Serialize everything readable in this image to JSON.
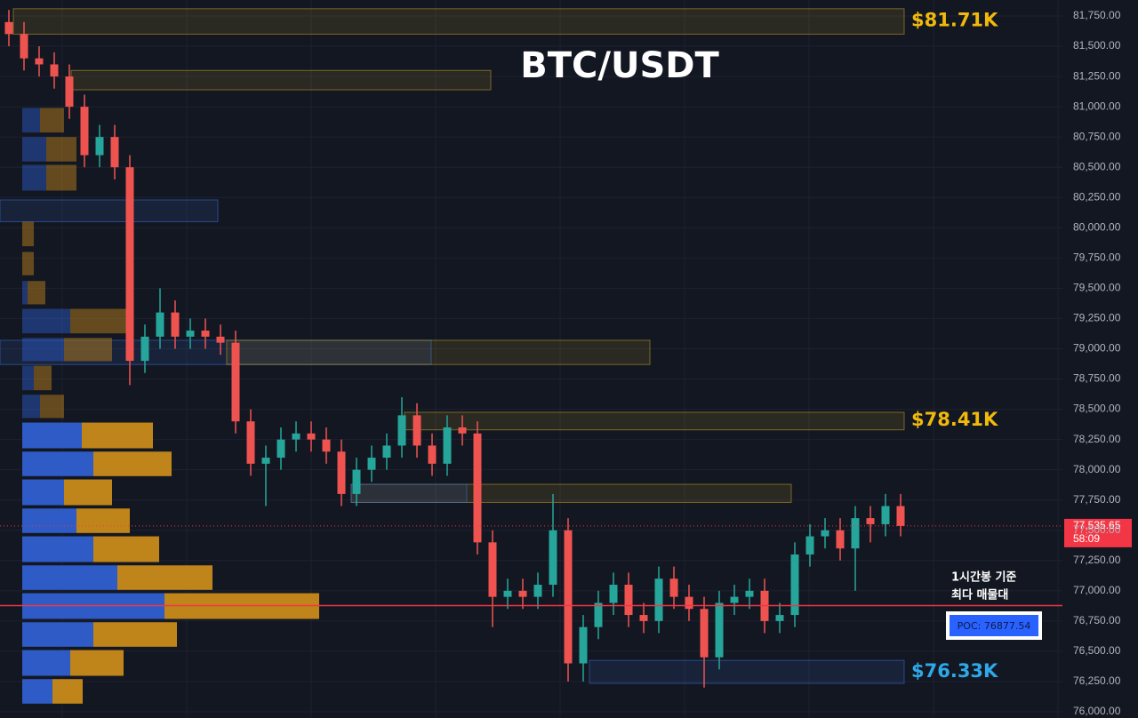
{
  "chart_data": {
    "type": "candlestick",
    "title": "BTC/USDT",
    "up_color": "#26a69a",
    "down_color": "#ef5350",
    "ylim": [
      76000,
      81750
    ],
    "grid": true,
    "yticks": [
      {
        "value": 76000,
        "label": "76,000.00"
      },
      {
        "value": 76250,
        "label": "76,250.00"
      },
      {
        "value": 76500,
        "label": "76,500.00"
      },
      {
        "value": 76750,
        "label": "76,750.00"
      },
      {
        "value": 77000,
        "label": "77,000.00"
      },
      {
        "value": 77250,
        "label": "77,250.00"
      },
      {
        "value": 77500,
        "label": "77,500.00"
      },
      {
        "value": 77750,
        "label": "77,750.00"
      },
      {
        "value": 78000,
        "label": "78,000.00"
      },
      {
        "value": 78250,
        "label": "78,250.00"
      },
      {
        "value": 78500,
        "label": "78,500.00"
      },
      {
        "value": 78750,
        "label": "78,750.00"
      },
      {
        "value": 79000,
        "label": "79,000.00"
      },
      {
        "value": 79250,
        "label": "79,250.00"
      },
      {
        "value": 79500,
        "label": "79,500.00"
      },
      {
        "value": 79750,
        "label": "79,750.00"
      },
      {
        "value": 80000,
        "label": "80,000.00"
      },
      {
        "value": 80250,
        "label": "80,250.00"
      },
      {
        "value": 80500,
        "label": "80,500.00"
      },
      {
        "value": 80750,
        "label": "80,750.00"
      },
      {
        "value": 81000,
        "label": "81,000.00"
      },
      {
        "value": 81250,
        "label": "81,250.00"
      },
      {
        "value": 81500,
        "label": "81,500.00"
      },
      {
        "value": 81750,
        "label": "81,750.00"
      }
    ],
    "open": [
      81700,
      81600,
      81400,
      81350,
      81250,
      81000,
      80600,
      80750,
      80500,
      78900,
      79100,
      79300,
      79100,
      79150,
      79100,
      79050,
      78400,
      78050,
      78100,
      78250,
      78300,
      78250,
      78150,
      77800,
      78000,
      78100,
      78200,
      78450,
      78200,
      78050,
      78350,
      78300,
      77400,
      76950,
      77000,
      76950,
      77050,
      77500,
      76400,
      76700,
      76900,
      77050,
      76800,
      76750,
      77100,
      76950,
      76850,
      76450,
      76900,
      76950,
      77000,
      76750,
      76800,
      77300,
      77450,
      77500,
      77350,
      77600,
      77550,
      77700
    ],
    "high": [
      81800,
      81700,
      81500,
      81450,
      81350,
      81100,
      80850,
      80850,
      80600,
      79200,
      79500,
      79400,
      79250,
      79250,
      79200,
      79150,
      78500,
      78200,
      78350,
      78400,
      78400,
      78350,
      78250,
      78100,
      78200,
      78300,
      78600,
      78550,
      78300,
      78450,
      78450,
      78400,
      77500,
      77100,
      77100,
      77150,
      77800,
      77600,
      76800,
      77000,
      77150,
      77150,
      76900,
      77200,
      77200,
      77050,
      76950,
      77000,
      77050,
      77100,
      77100,
      76900,
      77400,
      77550,
      77600,
      77600,
      77700,
      77700,
      77800,
      77800
    ],
    "low": [
      81500,
      81300,
      81250,
      81150,
      80900,
      80500,
      80500,
      80400,
      78700,
      78800,
      79000,
      79000,
      79000,
      79000,
      78950,
      78300,
      77950,
      77700,
      78000,
      78150,
      78150,
      78050,
      77700,
      77700,
      77900,
      78000,
      78100,
      78100,
      77950,
      77950,
      78200,
      77300,
      76700,
      76850,
      76850,
      76850,
      76950,
      76250,
      76250,
      76600,
      76800,
      76700,
      76650,
      76650,
      76850,
      76750,
      76200,
      76350,
      76800,
      76850,
      76650,
      76650,
      76700,
      77200,
      77350,
      77250,
      77000,
      77400,
      77450,
      77450
    ],
    "close": [
      81600,
      81400,
      81350,
      81250,
      81000,
      80600,
      80750,
      80500,
      78900,
      79100,
      79300,
      79100,
      79150,
      79100,
      79050,
      78400,
      78050,
      78100,
      78250,
      78300,
      78250,
      78150,
      77800,
      78000,
      78100,
      78200,
      78450,
      78200,
      78050,
      78350,
      78300,
      77400,
      76950,
      77000,
      76950,
      77050,
      77500,
      76400,
      76700,
      76900,
      77050,
      76800,
      76750,
      77100,
      76950,
      76850,
      76450,
      76900,
      76950,
      77000,
      76750,
      76800,
      77300,
      77450,
      77500,
      77350,
      77600,
      77550,
      77700,
      77535.65
    ],
    "zones": [
      {
        "low": 81600,
        "high": 81810,
        "color": "#c9a227"
      },
      {
        "low": 81140,
        "high": 81300,
        "color": "#c9a227"
      },
      {
        "low": 80050,
        "high": 80230,
        "color": "#3a6fd8"
      },
      {
        "low": 78870,
        "high": 79070,
        "color": "#3a6fd8"
      },
      {
        "low": 78870,
        "high": 79070,
        "color": "#c9a227"
      },
      {
        "low": 78330,
        "high": 78475,
        "color": "#c9a227"
      },
      {
        "low": 77730,
        "high": 77880,
        "color": "#c9a227"
      },
      {
        "low": 77730,
        "high": 77880,
        "color": "#3a6fd8"
      },
      {
        "low": 76235,
        "high": 76425,
        "color": "#3a6fd8"
      }
    ],
    "levels": [
      {
        "value": 81710,
        "label": "$81.71K",
        "color": "#f0b90b"
      },
      {
        "value": 78410,
        "label": "$78.41K",
        "color": "#f0b90b"
      },
      {
        "value": 76330,
        "label": "$76.33K",
        "color": "#2ea8e8"
      }
    ],
    "volume_profile": {
      "buy_color": "#2f5fd0",
      "sell_color": "#c88a1a",
      "rows": [
        {
          "low": 80780,
          "high": 80990,
          "buy": 20,
          "sell": 27
        },
        {
          "low": 80540,
          "high": 80750,
          "buy": 27,
          "sell": 34
        },
        {
          "low": 80300,
          "high": 80520,
          "buy": 27,
          "sell": 34
        },
        {
          "low": 79840,
          "high": 80050,
          "buy": 0,
          "sell": 13
        },
        {
          "low": 79600,
          "high": 79800,
          "buy": 0,
          "sell": 13
        },
        {
          "low": 79360,
          "high": 79560,
          "buy": 6,
          "sell": 20
        },
        {
          "low": 79120,
          "high": 79330,
          "buy": 54,
          "sell": 64
        },
        {
          "low": 78890,
          "high": 79090,
          "buy": 47,
          "sell": 54
        },
        {
          "low": 78650,
          "high": 78860,
          "buy": 13,
          "sell": 20
        },
        {
          "low": 78420,
          "high": 78620,
          "buy": 20,
          "sell": 27
        },
        {
          "low": 78170,
          "high": 78390,
          "buy": 67,
          "sell": 80
        },
        {
          "low": 77940,
          "high": 78150,
          "buy": 80,
          "sell": 88
        },
        {
          "low": 77700,
          "high": 77920,
          "buy": 47,
          "sell": 54
        },
        {
          "low": 77470,
          "high": 77680,
          "buy": 61,
          "sell": 60
        },
        {
          "low": 77230,
          "high": 77450,
          "buy": 80,
          "sell": 74
        },
        {
          "low": 77000,
          "high": 77210,
          "buy": 107,
          "sell": 107
        },
        {
          "low": 76760,
          "high": 76980,
          "buy": 160,
          "sell": 174
        },
        {
          "low": 76530,
          "high": 76740,
          "buy": 80,
          "sell": 94
        },
        {
          "low": 76290,
          "high": 76510,
          "buy": 54,
          "sell": 60
        },
        {
          "low": 76060,
          "high": 76270,
          "buy": 34,
          "sell": 34
        }
      ]
    },
    "poc": {
      "value": 76877.54,
      "label": "POC: 76877.54",
      "color": "#f23645"
    },
    "annotation": [
      "1시간봉 기준",
      "최다 매물대"
    ],
    "price_tag": {
      "value": 77535.65,
      "label": "77,535.65",
      "countdown": "58:09",
      "color": "#f23645"
    }
  }
}
